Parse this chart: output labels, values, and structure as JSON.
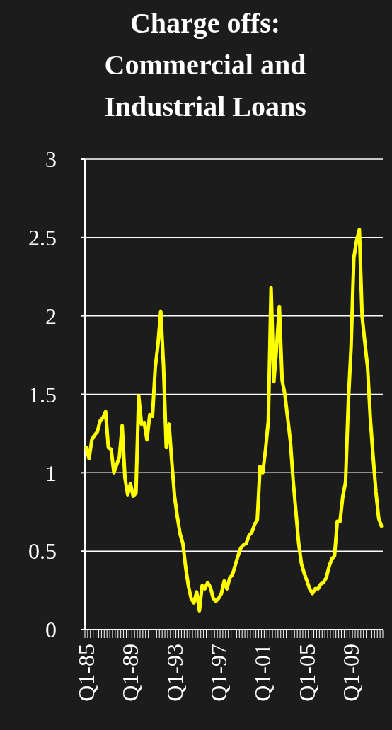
{
  "chart_data": {
    "type": "line",
    "title": "Charge offs: Commercial and Industrial Loans",
    "categories": [
      "Q1-85",
      null,
      null,
      null,
      null,
      null,
      null,
      null,
      null,
      null,
      null,
      null,
      null,
      null,
      null,
      null,
      "Q1-89",
      null,
      null,
      null,
      null,
      null,
      null,
      null,
      null,
      null,
      null,
      null,
      null,
      null,
      null,
      null,
      "Q1-93",
      null,
      null,
      null,
      null,
      null,
      null,
      null,
      null,
      null,
      null,
      null,
      null,
      null,
      null,
      null,
      "Q1-97",
      null,
      null,
      null,
      null,
      null,
      null,
      null,
      null,
      null,
      null,
      null,
      null,
      null,
      null,
      null,
      "Q1-01",
      null,
      null,
      null,
      null,
      null,
      null,
      null,
      null,
      null,
      null,
      null,
      null,
      null,
      null,
      null,
      "Q1-05",
      null,
      null,
      null,
      null,
      null,
      null,
      null,
      null,
      null,
      null,
      null,
      null,
      null,
      null,
      null,
      "Q1-09",
      null,
      null,
      null,
      null,
      null,
      null,
      null,
      null,
      null,
      null,
      null
    ],
    "series": [
      {
        "color": "#ffff00",
        "values": [
          1.16,
          1.09,
          1.21,
          1.24,
          1.26,
          1.33,
          1.35,
          1.39,
          1.16,
          1.15,
          1.0,
          1.05,
          1.1,
          1.3,
          0.97,
          0.86,
          0.93,
          0.85,
          0.87,
          1.49,
          1.31,
          1.32,
          1.21,
          1.37,
          1.36,
          1.67,
          1.82,
          2.03,
          1.68,
          1.16,
          1.31,
          1.07,
          0.85,
          0.72,
          0.61,
          0.55,
          0.4,
          0.28,
          0.2,
          0.17,
          0.24,
          0.12,
          0.28,
          0.26,
          0.3,
          0.27,
          0.2,
          0.18,
          0.2,
          0.23,
          0.31,
          0.26,
          0.33,
          0.35,
          0.41,
          0.47,
          0.52,
          0.54,
          0.55,
          0.6,
          0.62,
          0.67,
          0.7,
          1.04,
          1.0,
          1.15,
          1.33,
          2.18,
          1.58,
          1.8,
          2.06,
          1.59,
          1.5,
          1.35,
          1.2,
          0.95,
          0.75,
          0.55,
          0.42,
          0.36,
          0.31,
          0.26,
          0.23,
          0.26,
          0.26,
          0.29,
          0.3,
          0.33,
          0.4,
          0.45,
          0.47,
          0.69,
          0.69,
          0.85,
          0.94,
          1.45,
          1.8,
          2.37,
          2.48,
          2.55,
          2.0,
          1.83,
          1.67,
          1.34,
          1.1,
          0.88,
          0.71,
          0.66
        ]
      }
    ],
    "ylim": [
      0,
      3
    ],
    "yticks": [
      0,
      0.5,
      1,
      1.5,
      2,
      2.5,
      3
    ],
    "grid": "y",
    "marker": "none",
    "line_style": "solid"
  }
}
